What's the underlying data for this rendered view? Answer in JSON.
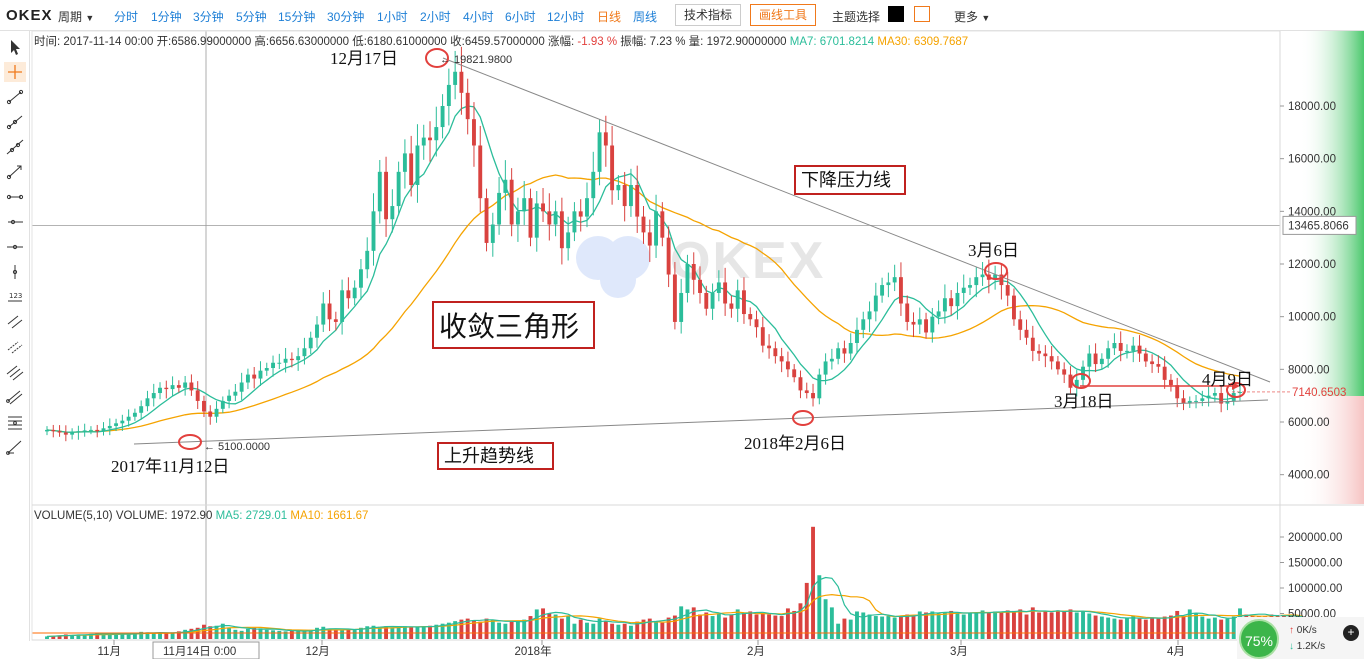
{
  "toolbar": {
    "logo": "OKEX",
    "period_select": "周期",
    "periods": [
      "分时",
      "1分钟",
      "3分钟",
      "5分钟",
      "15分钟",
      "30分钟",
      "1小时",
      "2小时",
      "4小时",
      "6小时",
      "12小时",
      "日线",
      "周线"
    ],
    "active_period": "日线",
    "indicator_button": "技术指标",
    "draw_button": "画线工具",
    "theme_label": "主题选择",
    "theme_colors": [
      "#000000",
      "#ffffff"
    ],
    "more": "更多"
  },
  "info": {
    "time_label": "时间:",
    "time": "2017-11-14  00:00",
    "open_label": "开:",
    "open": "6586.99000000",
    "high_label": "高:",
    "high": "6656.63000000",
    "low_label": "低:",
    "low": "6180.61000000",
    "close_label": "收:",
    "close": "6459.57000000",
    "chg_label": "涨幅:",
    "chg": "-1.93 %",
    "amp_label": "振幅:",
    "amp": "7.23 %",
    "vol_label": "量:",
    "vol": "1972.90000000",
    "ma7_label": "MA7:",
    "ma7": "6701.8214",
    "ma30_label": "MA30:",
    "ma30": "6309.7687"
  },
  "volume_info": {
    "title": "VOLUME(5,10)",
    "volume_label": "VOLUME:",
    "volume": "1972.90",
    "ma5_label": "MA5:",
    "ma5": "2729.01",
    "ma10_label": "MA10:",
    "ma10": "1661.67"
  },
  "status": {
    "gauge": "75%",
    "up": "0K/s",
    "down": "1.2K/s"
  },
  "chart_data": {
    "type": "candlestick",
    "watermark": "OKEX",
    "price_ticks": [
      "18000.00",
      "16000.00",
      "14000.00",
      "12000.00",
      "10000.00",
      "8000.00",
      "6000.00",
      "4000.00"
    ],
    "price_tick_values": [
      18000,
      16000,
      14000,
      12000,
      10000,
      8000,
      6000,
      4000
    ],
    "crosshair_price": "13465.8066",
    "last_price": "7140.6503",
    "volume_ticks": [
      "200000.00",
      "150000.00",
      "100000.00",
      "50000.00"
    ],
    "volume_tick_values": [
      200000,
      150000,
      100000,
      50000
    ],
    "x_labels": [
      "11月",
      "12月",
      "2018年",
      "2月",
      "3月",
      "4月"
    ],
    "crosshair_date": "11月14日  0:00",
    "colors": {
      "up": "#2bbd9a",
      "down": "#d9423f",
      "ma_short": "#2bbd9a",
      "ma_long": "#f5a300",
      "volume_line": "#ff6a00"
    },
    "annotations": {
      "high": "12月17日",
      "high_value": "19821.9800",
      "low_start": "2017年11月12日",
      "low_start_value": "5100.0000",
      "low_feb": "2018年2月6日",
      "mar6": "3月6日",
      "mar18": "3月18日",
      "apr9": "4月9日",
      "falling_line": "下降压力线",
      "rising_line": "上升趋势线",
      "pattern": "收敛三角形"
    },
    "closes": [
      5700,
      5650,
      5600,
      5520,
      5600,
      5650,
      5680,
      5700,
      5650,
      5760,
      5850,
      5950,
      6050,
      6200,
      6350,
      6600,
      6900,
      7100,
      7300,
      7250,
      7400,
      7300,
      7500,
      7200,
      6800,
      6400,
      6200,
      6500,
      6800,
      7000,
      7150,
      7500,
      7800,
      7650,
      7950,
      8050,
      8250,
      8250,
      8400,
      8350,
      8500,
      8800,
      9200,
      9700,
      10500,
      9900,
      9800,
      11000,
      10700,
      11100,
      11800,
      12500,
      14000,
      15500,
      13700,
      14200,
      15500,
      16200,
      15000,
      16500,
      16800,
      16700,
      17200,
      18000,
      18800,
      19300,
      18500,
      17500,
      16500,
      14500,
      12800,
      13500,
      14700,
      15200,
      13500,
      14000,
      14500,
      13000,
      14300,
      14000,
      13500,
      14000,
      12600,
      13200,
      14000,
      13800,
      14500,
      15500,
      17000,
      16500,
      14800,
      15000,
      14200,
      15000,
      13800,
      13200,
      12700,
      14000,
      13000,
      11600,
      9800,
      10900,
      12000,
      11400,
      10900,
      10300,
      10900,
      11300,
      10500,
      10300,
      11000,
      10100,
      9900,
      9600,
      8900,
      8800,
      8500,
      8300,
      8000,
      7700,
      7200,
      7100,
      6900,
      7800,
      8300,
      8400,
      8800,
      8600,
      9000,
      9500,
      9900,
      10200,
      10800,
      11200,
      11300,
      11500,
      10500,
      9800,
      9700,
      9900,
      9400,
      10000,
      10200,
      10700,
      10400,
      10900,
      11100,
      11200,
      11500,
      11600,
      11400,
      11600,
      11200,
      10800,
      9900,
      9500,
      9200,
      8700,
      8600,
      8500,
      8300,
      8000,
      7800,
      7300,
      7600,
      8100,
      8600,
      8200,
      8400,
      8800,
      9000,
      8700,
      8700,
      8900,
      8600,
      8300,
      8200,
      8100,
      7600,
      7400,
      6900,
      6700,
      6800,
      6800,
      6900,
      7000,
      7100,
      6700,
      6800,
      7100,
      7140
    ],
    "volumes": [
      5000,
      6000,
      7000,
      9000,
      8000,
      9000,
      8000,
      10000,
      12000,
      10000,
      9000,
      8000,
      11000,
      10000,
      12000,
      14000,
      13000,
      12000,
      12000,
      11000,
      13000,
      15000,
      18000,
      20000,
      22000,
      28000,
      25000,
      26000,
      30000,
      22000,
      18000,
      16000,
      20000,
      22000,
      21000,
      18000,
      17000,
      16000,
      15000,
      16000,
      15000,
      15000,
      18000,
      22000,
      24000,
      20000,
      17000,
      17000,
      20000,
      19000,
      22000,
      25000,
      26000,
      24000,
      25000,
      23000,
      24000,
      25000,
      23000,
      23000,
      25000,
      26000,
      28000,
      30000,
      32000,
      35000,
      38000,
      40000,
      36000,
      34000,
      40000,
      38000,
      32000,
      30000,
      34000,
      36000,
      38000,
      45000,
      58000,
      60000,
      50000,
      48000,
      40000,
      45000,
      30000,
      38000,
      32000,
      30000,
      40000,
      36000,
      30000,
      28000,
      30000,
      26000,
      34000,
      38000,
      40000,
      35000,
      32000,
      42000,
      46000,
      64000,
      58000,
      62000,
      48000,
      52000,
      45000,
      50000,
      42000,
      48000,
      58000,
      52000,
      54000,
      48000,
      50000,
      48000,
      46000,
      45000,
      60000,
      55000,
      70000,
      110000,
      220000,
      125000,
      78000,
      62000,
      30000,
      40000,
      38000,
      54000,
      52000,
      48000,
      45000,
      44000,
      45000,
      42000,
      44000,
      48000,
      46000,
      54000,
      52000,
      54000,
      50000,
      52000,
      55000,
      50000,
      48000,
      50000,
      52000,
      56000,
      52000,
      54000,
      52000,
      56000,
      55000,
      58000,
      48000,
      62000,
      52000,
      55000,
      52000,
      56000,
      54000,
      58000,
      52000,
      54000,
      50000,
      46000,
      44000,
      42000,
      40000,
      38000,
      42000,
      45000,
      40000,
      38000,
      42000,
      40000,
      44000,
      46000,
      55000,
      45000,
      58000,
      50000,
      44000,
      40000,
      42000,
      38000,
      40000,
      44000,
      60000,
      48000,
      46000,
      45000,
      44000,
      48000,
      46000,
      45000,
      44000,
      42000,
      40000
    ]
  }
}
